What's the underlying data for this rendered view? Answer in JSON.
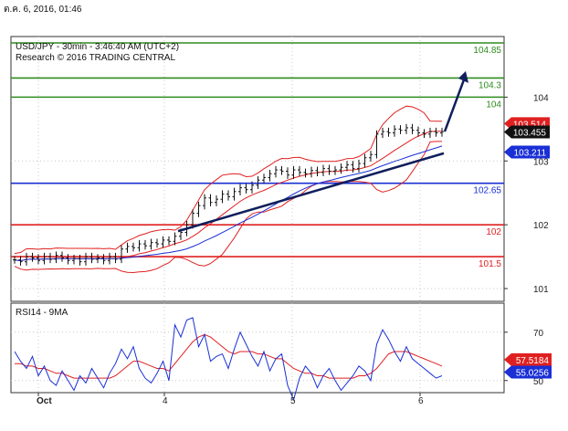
{
  "timestamp": "ต.ค. 6, 2016, 01:46",
  "chart_data": [
    {
      "type": "line",
      "title": "USD/JPY - 30min - 3:46:40 AM (UTC+2)",
      "subtitle": "Research © 2016 TRADING CENTRAL",
      "ylim": [
        100.8,
        104.95
      ],
      "y_ticks": [
        "104",
        "103",
        "102",
        "101"
      ],
      "x_ticks": [
        "Oct",
        "4",
        "5",
        "6"
      ],
      "grid": true,
      "levels": [
        {
          "label": "104.85",
          "value": 104.85,
          "color": "#2e8b1e"
        },
        {
          "label": "104.3",
          "value": 104.3,
          "color": "#2e8b1e"
        },
        {
          "label": "104",
          "value": 104.0,
          "color": "#2e8b1e"
        },
        {
          "label": "102.65",
          "value": 102.65,
          "color": "#1a2fd6"
        },
        {
          "label": "102",
          "value": 102.0,
          "color": "#e02020"
        },
        {
          "label": "101.5",
          "value": 101.5,
          "color": "#e02020"
        }
      ],
      "price_markers": [
        {
          "label": "103.514",
          "value": 103.514,
          "color": "#e02020"
        },
        {
          "label": "103.455",
          "value": 103.455,
          "color": "#111111"
        },
        {
          "label": "103.211",
          "value": 103.211,
          "color": "#1a2fd6"
        }
      ],
      "close": [
        101.45,
        101.42,
        101.5,
        101.48,
        101.44,
        101.5,
        101.46,
        101.52,
        101.48,
        101.44,
        101.47,
        101.42,
        101.5,
        101.46,
        101.48,
        101.44,
        101.5,
        101.46,
        101.62,
        101.66,
        101.64,
        101.7,
        101.67,
        101.72,
        101.7,
        101.76,
        101.74,
        101.82,
        101.88,
        102.0,
        102.18,
        102.3,
        102.42,
        102.35,
        102.4,
        102.48,
        102.44,
        102.52,
        102.58,
        102.55,
        102.62,
        102.7,
        102.74,
        102.8,
        102.86,
        102.84,
        102.78,
        102.86,
        102.82,
        102.8,
        102.85,
        102.82,
        102.88,
        102.84,
        102.86,
        102.9,
        102.94,
        102.88,
        102.96,
        103.05,
        103.1,
        103.42,
        103.46,
        103.44,
        103.5,
        103.48,
        103.52,
        103.48,
        103.44,
        103.42,
        103.46,
        103.44,
        103.46
      ],
      "rsi": [
        62,
        58,
        55,
        60,
        52,
        56,
        50,
        48,
        54,
        50,
        46,
        52,
        49,
        55,
        51,
        47,
        53,
        57,
        63,
        59,
        64,
        55,
        51,
        49,
        53,
        58,
        50,
        73,
        68,
        75,
        76,
        64,
        69,
        58,
        60,
        61,
        55,
        63,
        70,
        65,
        60,
        56,
        62,
        54,
        59,
        61,
        48,
        42,
        51,
        56,
        53,
        47,
        52,
        55,
        50,
        46,
        49,
        52,
        56,
        54,
        50,
        65,
        71,
        67,
        62,
        58,
        64,
        59,
        57,
        55,
        53,
        51,
        52
      ],
      "rsi_ma": [
        57,
        57,
        56,
        56,
        55,
        55,
        54,
        53,
        53,
        52,
        51,
        51,
        51,
        51,
        51,
        51,
        51,
        52,
        54,
        56,
        58,
        58,
        57,
        56,
        55,
        55,
        54,
        57,
        60,
        63,
        66,
        68,
        69,
        68,
        66,
        64,
        62,
        61,
        62,
        62,
        62,
        61,
        61,
        60,
        59,
        59,
        57,
        55,
        54,
        53,
        53,
        52,
        52,
        51,
        51,
        51,
        51,
        51,
        52,
        52,
        53,
        55,
        58,
        61,
        62,
        62,
        62,
        61,
        60,
        59,
        58,
        57,
        56
      ],
      "rsi_panel": {
        "title": "RSI14 - 9MA",
        "ylim": [
          45,
          82
        ],
        "y_ticks": [
          "70",
          "50"
        ],
        "markers": [
          {
            "label": "57.5184",
            "value": 57.5184,
            "color": "#e02020"
          },
          {
            "label": "55.0256",
            "value": 55.0256,
            "color": "#1a2fd6"
          }
        ]
      },
      "forecast": {
        "from": 103.46,
        "to": 104.35
      },
      "trendline": {
        "from": 101.9,
        "to": 103.12
      }
    }
  ]
}
